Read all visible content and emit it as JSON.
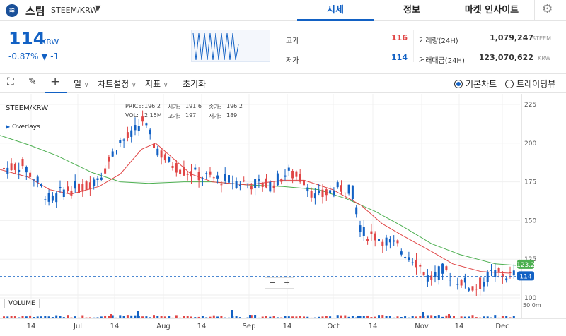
{
  "header": {
    "logo_icon": "steem-logo-icon",
    "coin_name": "스팀",
    "coin_pair": "STEEM/KRW",
    "tabs": [
      {
        "label": "시세",
        "active": true
      },
      {
        "label": "정보",
        "active": false
      },
      {
        "label": "마켓 인사이트",
        "active": false
      }
    ]
  },
  "ticker": {
    "price": "114",
    "unit": "KRW",
    "change": "-0.87% ▼ -1",
    "high_label": "고가",
    "high_value": "116",
    "low_label": "저가",
    "low_value": "114",
    "volume_label": "거래량(24H)",
    "volume_value": "1,079,247",
    "volume_unit": "STEEM",
    "amount_label": "거래대금(24H)",
    "amount_value": "123,070,622",
    "amount_unit": "KRW"
  },
  "toolbar": {
    "interval": "일",
    "chart_settings": "차트설정",
    "indicators": "지표",
    "reset": "초기화",
    "basic_chart": "기본차트",
    "tradingview": "트레이딩뷰"
  },
  "chart_info": {
    "symbol": "STEEM/KRW",
    "overlays": "Overlays",
    "price_label": "PRICE:",
    "price_value": "196.2",
    "open_label": "시가:",
    "open_value": "191.6",
    "close_label": "종가:",
    "close_value": "196.2",
    "vol_label": "VOL:",
    "vol_value": "2.15M",
    "high_label": "고가:",
    "high_value": "197",
    "low_label": "저가:",
    "low_value": "189",
    "volume_tag": "VOLUME",
    "zoom_minus": "−",
    "zoom_plus": "+",
    "badge_ma": "123.2",
    "badge_price": "114"
  },
  "chart_data": {
    "type": "candlestick",
    "ylim": [
      95,
      230
    ],
    "y_ticks": [
      "225",
      "200",
      "175",
      "150",
      "125",
      "100"
    ],
    "volume_tick": "50.0m",
    "x_ticks": [
      "14",
      "Jul",
      "14",
      "Aug",
      "14",
      "Sep",
      "14",
      "Oct",
      "14",
      "Nov",
      "14",
      "Dec"
    ],
    "series": [
      {
        "name": "slow MA",
        "color": "#4caf50",
        "points": [
          [
            0,
            205
          ],
          [
            40,
            199
          ],
          [
            80,
            192
          ],
          [
            130,
            181
          ],
          [
            170,
            175
          ],
          [
            210,
            174
          ],
          [
            260,
            175
          ],
          [
            300,
            175
          ],
          [
            350,
            173
          ],
          [
            400,
            172
          ],
          [
            450,
            170
          ],
          [
            490,
            164
          ],
          [
            530,
            156
          ],
          [
            570,
            146
          ],
          [
            610,
            135
          ],
          [
            650,
            128
          ],
          [
            700,
            122
          ],
          [
            730,
            121
          ]
        ]
      },
      {
        "name": "fast MA",
        "color": "#e04646",
        "points": [
          [
            0,
            183
          ],
          [
            40,
            178
          ],
          [
            70,
            170
          ],
          [
            100,
            167
          ],
          [
            140,
            172
          ],
          [
            170,
            180
          ],
          [
            200,
            196
          ],
          [
            220,
            200
          ],
          [
            240,
            192
          ],
          [
            270,
            180
          ],
          [
            300,
            175
          ],
          [
            350,
            173
          ],
          [
            400,
            176
          ],
          [
            430,
            176
          ],
          [
            470,
            170
          ],
          [
            510,
            160
          ],
          [
            540,
            148
          ],
          [
            570,
            140
          ],
          [
            610,
            130
          ],
          [
            640,
            122
          ],
          [
            680,
            117
          ],
          [
            720,
            116
          ]
        ]
      }
    ]
  },
  "colors": {
    "accent": "#1261c4",
    "up": "#e04646",
    "down": "#1261c4",
    "ma_slow": "#4caf50",
    "ma_fast": "#e04646"
  }
}
